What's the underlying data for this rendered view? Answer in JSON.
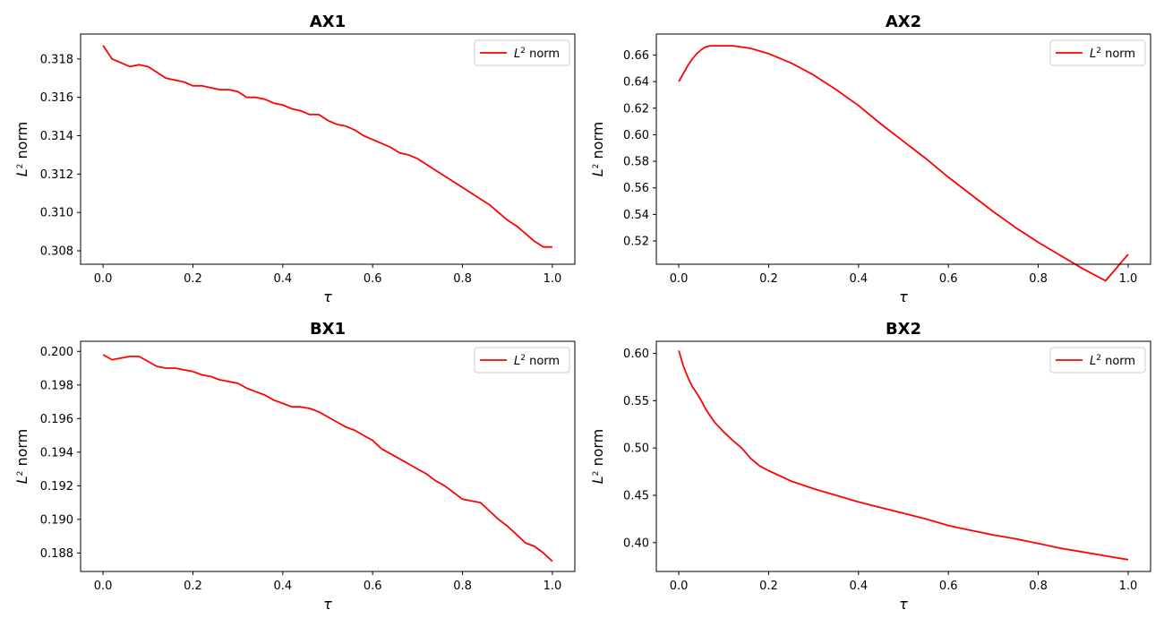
{
  "figure": {
    "line_color": "#ff0000",
    "frame_color": "#000000"
  },
  "chart_data": [
    {
      "type": "line",
      "title": "AX1",
      "xlabel": "τ",
      "ylabel": "L² norm",
      "legend": {
        "entry": "L² norm",
        "placement": "top-right"
      },
      "grid": false,
      "xlim": [
        -0.05,
        1.05
      ],
      "ylim": [
        0.3073,
        0.3193
      ],
      "xticks": [
        0.0,
        0.2,
        0.4,
        0.6,
        0.8,
        1.0
      ],
      "xtick_labels": [
        "0.0",
        "0.2",
        "0.4",
        "0.6",
        "0.8",
        "1.0"
      ],
      "yticks": [
        0.308,
        0.31,
        0.312,
        0.314,
        0.316,
        0.318
      ],
      "ytick_labels": [
        "0.308",
        "0.310",
        "0.312",
        "0.314",
        "0.316",
        "0.318"
      ],
      "x": [
        0.0,
        0.02,
        0.04,
        0.06,
        0.08,
        0.1,
        0.12,
        0.14,
        0.16,
        0.18,
        0.2,
        0.22,
        0.24,
        0.26,
        0.28,
        0.3,
        0.32,
        0.34,
        0.36,
        0.38,
        0.4,
        0.42,
        0.44,
        0.46,
        0.48,
        0.5,
        0.52,
        0.54,
        0.56,
        0.58,
        0.6,
        0.62,
        0.64,
        0.66,
        0.68,
        0.7,
        0.72,
        0.74,
        0.76,
        0.78,
        0.8,
        0.82,
        0.84,
        0.86,
        0.88,
        0.9,
        0.92,
        0.94,
        0.96,
        0.98,
        1.0
      ],
      "y": [
        0.3187,
        0.318,
        0.3178,
        0.3176,
        0.3177,
        0.3176,
        0.3173,
        0.317,
        0.3169,
        0.3168,
        0.3166,
        0.3166,
        0.3165,
        0.3164,
        0.3164,
        0.3163,
        0.316,
        0.316,
        0.3159,
        0.3157,
        0.3156,
        0.3154,
        0.3153,
        0.3151,
        0.3151,
        0.3148,
        0.3146,
        0.3145,
        0.3143,
        0.314,
        0.3138,
        0.3136,
        0.3134,
        0.3131,
        0.313,
        0.3128,
        0.3125,
        0.3122,
        0.3119,
        0.3116,
        0.3113,
        0.311,
        0.3107,
        0.3104,
        0.31,
        0.3096,
        0.3093,
        0.3089,
        0.3085,
        0.3082,
        0.3082
      ]
    },
    {
      "type": "line",
      "title": "AX2",
      "xlabel": "τ",
      "ylabel": "L² norm",
      "legend": {
        "entry": "L² norm",
        "placement": "top-right"
      },
      "grid": false,
      "xlim": [
        -0.05,
        1.05
      ],
      "ylim": [
        0.5025,
        0.6758
      ],
      "xticks": [
        0.0,
        0.2,
        0.4,
        0.6,
        0.8,
        1.0
      ],
      "xtick_labels": [
        "0.0",
        "0.2",
        "0.4",
        "0.6",
        "0.8",
        "1.0"
      ],
      "yticks": [
        0.52,
        0.54,
        0.56,
        0.58,
        0.6,
        0.62,
        0.64,
        0.66
      ],
      "ytick_labels": [
        "0.52",
        "0.54",
        "0.56",
        "0.58",
        "0.60",
        "0.62",
        "0.64",
        "0.66"
      ],
      "x": [
        0.0,
        0.01,
        0.02,
        0.03,
        0.04,
        0.05,
        0.06,
        0.07,
        0.08,
        0.1,
        0.12,
        0.14,
        0.16,
        0.18,
        0.2,
        0.25,
        0.3,
        0.35,
        0.4,
        0.45,
        0.5,
        0.55,
        0.6,
        0.65,
        0.7,
        0.75,
        0.8,
        0.85,
        0.9,
        0.95,
        1.0
      ],
      "y": [
        0.64,
        0.646,
        0.652,
        0.657,
        0.661,
        0.664,
        0.666,
        0.667,
        0.667,
        0.667,
        0.667,
        0.666,
        0.665,
        0.663,
        0.661,
        0.654,
        0.645,
        0.634,
        0.622,
        0.608,
        0.595,
        0.582,
        0.568,
        0.555,
        0.542,
        0.53,
        0.519,
        0.509,
        0.499,
        0.49,
        0.51
      ]
    },
    {
      "type": "line",
      "title": "BX1",
      "xlabel": "τ",
      "ylabel": "L² norm",
      "legend": {
        "entry": "L² norm",
        "placement": "top-right"
      },
      "grid": false,
      "xlim": [
        -0.05,
        1.05
      ],
      "ylim": [
        0.1869,
        0.2006
      ],
      "xticks": [
        0.0,
        0.2,
        0.4,
        0.6,
        0.8,
        1.0
      ],
      "xtick_labels": [
        "0.0",
        "0.2",
        "0.4",
        "0.6",
        "0.8",
        "1.0"
      ],
      "yticks": [
        0.188,
        0.19,
        0.192,
        0.194,
        0.196,
        0.198,
        0.2
      ],
      "ytick_labels": [
        "0.188",
        "0.190",
        "0.192",
        "0.194",
        "0.196",
        "0.198",
        "0.200"
      ],
      "x": [
        0.0,
        0.02,
        0.04,
        0.06,
        0.08,
        0.1,
        0.12,
        0.14,
        0.16,
        0.18,
        0.2,
        0.22,
        0.24,
        0.26,
        0.28,
        0.3,
        0.32,
        0.34,
        0.36,
        0.38,
        0.4,
        0.42,
        0.44,
        0.46,
        0.48,
        0.5,
        0.52,
        0.54,
        0.56,
        0.58,
        0.6,
        0.62,
        0.64,
        0.66,
        0.68,
        0.7,
        0.72,
        0.74,
        0.76,
        0.78,
        0.8,
        0.82,
        0.84,
        0.86,
        0.88,
        0.9,
        0.92,
        0.94,
        0.96,
        0.98,
        1.0
      ],
      "y": [
        0.1998,
        0.1995,
        0.1996,
        0.1997,
        0.1997,
        0.1994,
        0.1991,
        0.199,
        0.199,
        0.1989,
        0.1988,
        0.1986,
        0.1985,
        0.1983,
        0.1982,
        0.1981,
        0.1978,
        0.1976,
        0.1974,
        0.1971,
        0.1969,
        0.1967,
        0.1967,
        0.1966,
        0.1964,
        0.1961,
        0.1958,
        0.1955,
        0.1953,
        0.195,
        0.1947,
        0.1942,
        0.1939,
        0.1936,
        0.1933,
        0.193,
        0.1927,
        0.1923,
        0.192,
        0.1916,
        0.1912,
        0.1911,
        0.191,
        0.1905,
        0.19,
        0.1896,
        0.1891,
        0.1886,
        0.1884,
        0.188,
        0.1875
      ]
    },
    {
      "type": "line",
      "title": "BX2",
      "xlabel": "τ",
      "ylabel": "L² norm",
      "legend": {
        "entry": "L² norm",
        "placement": "top-right"
      },
      "grid": false,
      "xlim": [
        -0.05,
        1.05
      ],
      "ylim": [
        0.3695,
        0.6128
      ],
      "xticks": [
        0.0,
        0.2,
        0.4,
        0.6,
        0.8,
        1.0
      ],
      "xtick_labels": [
        "0.0",
        "0.2",
        "0.4",
        "0.6",
        "0.8",
        "1.0"
      ],
      "yticks": [
        0.4,
        0.45,
        0.5,
        0.55,
        0.6
      ],
      "ytick_labels": [
        "0.40",
        "0.45",
        "0.50",
        "0.55",
        "0.60"
      ],
      "x": [
        0.0,
        0.01,
        0.02,
        0.03,
        0.04,
        0.05,
        0.06,
        0.07,
        0.08,
        0.09,
        0.1,
        0.12,
        0.14,
        0.16,
        0.18,
        0.2,
        0.25,
        0.3,
        0.35,
        0.4,
        0.45,
        0.5,
        0.55,
        0.6,
        0.65,
        0.7,
        0.75,
        0.8,
        0.85,
        0.9,
        0.95,
        1.0
      ],
      "y": [
        0.603,
        0.587,
        0.575,
        0.565,
        0.558,
        0.55,
        0.541,
        0.534,
        0.527,
        0.522,
        0.517,
        0.508,
        0.5,
        0.489,
        0.481,
        0.476,
        0.465,
        0.457,
        0.45,
        0.443,
        0.437,
        0.431,
        0.425,
        0.418,
        0.413,
        0.408,
        0.404,
        0.399,
        0.394,
        0.39,
        0.386,
        0.382
      ]
    }
  ]
}
